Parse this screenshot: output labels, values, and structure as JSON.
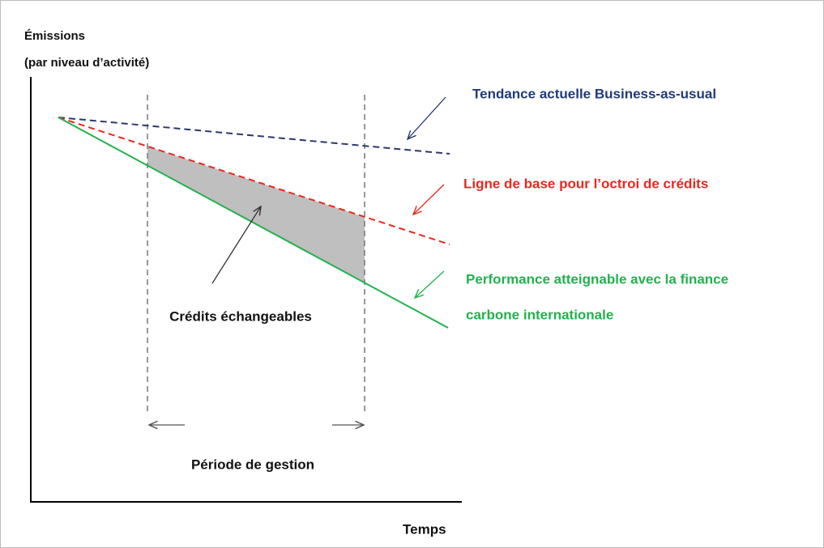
{
  "axis_labels": {
    "y_line1": "Émissions",
    "y_line2": "(par niveau d’activité)",
    "x": "Temps"
  },
  "lines": [
    {
      "label": "Tendance actuelle Business-as-usual"
    },
    {
      "label": "Ligne de base pour l’octroi de crédits"
    },
    {
      "label_line1": "Performance atteignable avec la finance",
      "label_line2": "carbone internationale"
    }
  ],
  "area_label": "Crédits échangeables",
  "period_label": "Période de gestion"
}
